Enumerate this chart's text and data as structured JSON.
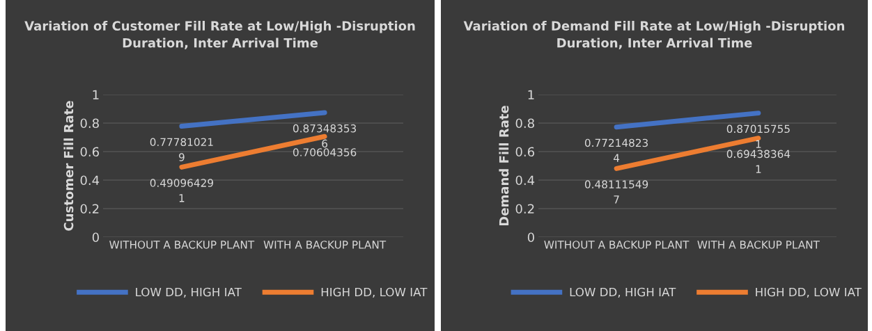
{
  "chart_data": [
    {
      "type": "line",
      "title": "Variation of Customer Fill Rate at Low/High -Disruption Duration, Inter Arrival Time",
      "ylabel": "Customer Fill Rate",
      "categories": [
        "WITHOUT A BACKUP PLANT",
        "WITH A BACKUP PLANT"
      ],
      "series": [
        {
          "name": "LOW DD, HIGH IAT",
          "color": "#4472c4",
          "values": [
            0.777810219,
            0.873483536
          ]
        },
        {
          "name": "HIGH DD, LOW IAT",
          "color": "#ed7d31",
          "values": [
            0.490964291,
            0.70604356
          ]
        }
      ],
      "ylim": [
        0,
        1
      ],
      "yticks": [
        0,
        0.2,
        0.4,
        0.6,
        0.8,
        1
      ],
      "grid": "y",
      "legend": "bottom",
      "data_labels": true,
      "marker": "none",
      "line_style": "solid"
    },
    {
      "type": "line",
      "title": "Variation of Demand Fill Rate at Low/High -Disruption Duration, Inter Arrival Time",
      "ylabel": "Demand Fill Rate",
      "categories": [
        "WITHOUT A BACKUP PLANT",
        "WITH A BACKUP PLANT"
      ],
      "series": [
        {
          "name": "LOW DD, HIGH IAT",
          "color": "#4472c4",
          "values": [
            0.772148234,
            0.870157551
          ]
        },
        {
          "name": "HIGH DD, LOW IAT",
          "color": "#ed7d31",
          "values": [
            0.481115497,
            0.694383641
          ]
        }
      ],
      "ylim": [
        0,
        1
      ],
      "yticks": [
        0,
        0.2,
        0.4,
        0.6,
        0.8,
        1
      ],
      "grid": "y",
      "legend": "bottom",
      "data_labels": true,
      "marker": "none",
      "line_style": "solid"
    }
  ]
}
